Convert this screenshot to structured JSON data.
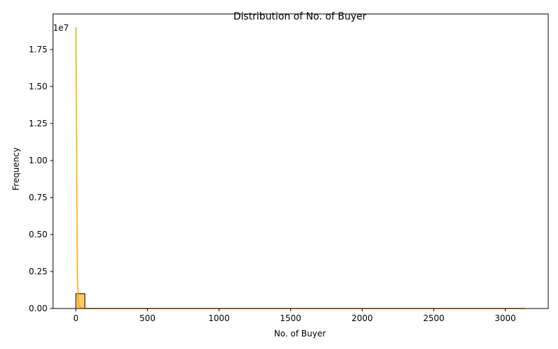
{
  "chart_data": {
    "type": "bar",
    "title": "Distribution of No. of Buyer",
    "xlabel": "No. of Buyer",
    "ylabel": "Frequency",
    "y_offset_label": "1e7",
    "xlim": [
      -160,
      3300
    ],
    "ylim": [
      0,
      19900000
    ],
    "x_ticks": [
      0,
      500,
      1000,
      1500,
      2000,
      2500,
      3000
    ],
    "y_ticks": [
      0,
      2500000,
      5000000,
      7500000,
      10000000,
      12500000,
      15000000,
      17500000
    ],
    "y_tick_labels": [
      "0.00",
      "0.25",
      "0.50",
      "0.75",
      "1.00",
      "1.25",
      "1.50",
      "1.75"
    ],
    "grid": false,
    "legend": "none",
    "bar_color": "#ffc966",
    "bar_edge_color": "#000000",
    "kde_color": "#ffa500",
    "bins": [
      {
        "x0": 0,
        "x1": 63,
        "count": 1000000
      },
      {
        "x0": 63,
        "x1": 3140,
        "count": 0
      }
    ],
    "kde": {
      "x": [
        0,
        10,
        20,
        40,
        80,
        200,
        500,
        1000,
        1500,
        2000,
        2500,
        3000,
        3140
      ],
      "y": [
        19000000,
        2000000,
        150000,
        8000,
        500,
        0,
        0,
        0,
        0,
        0,
        0,
        0,
        0
      ]
    }
  }
}
